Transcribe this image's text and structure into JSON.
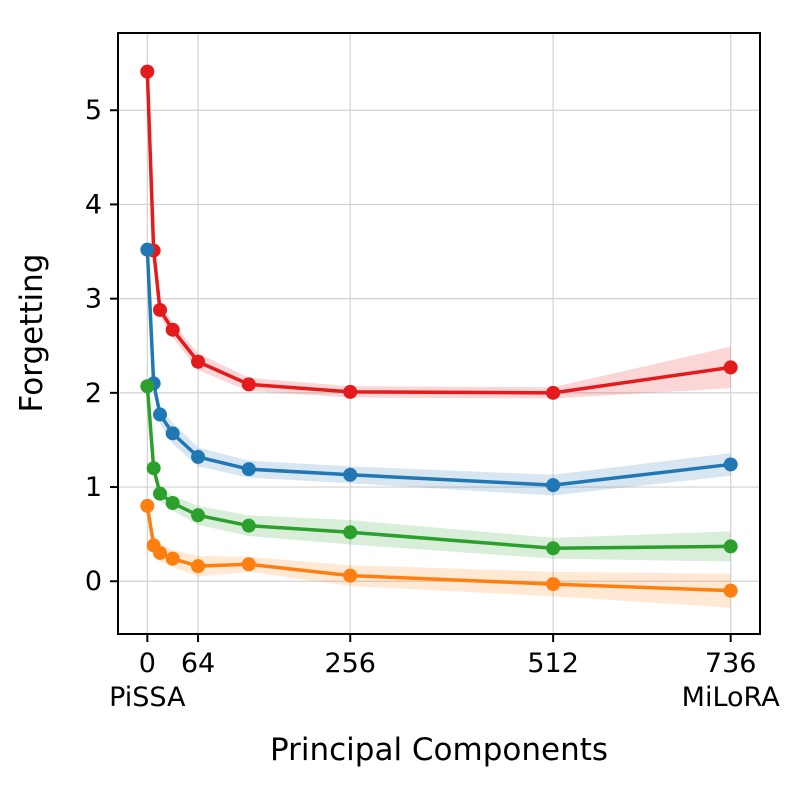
{
  "chart_data": {
    "type": "line",
    "title": "",
    "xlabel": "Principal Components",
    "ylabel": "Forgetting",
    "xlim": [
      -37,
      773
    ],
    "ylim": [
      -0.56,
      5.82
    ],
    "grid": true,
    "legend": "none",
    "x": [
      0,
      8,
      16,
      32,
      64,
      128,
      256,
      512,
      736
    ],
    "xticks": {
      "values": [
        0,
        64,
        256,
        512,
        736
      ],
      "labels": [
        "0",
        "64",
        "256",
        "512",
        "736"
      ]
    },
    "xtick_sublabels": [
      {
        "value": 0,
        "label": "PiSSA"
      },
      {
        "value": 736,
        "label": "MiLoRA"
      }
    ],
    "yticks": {
      "values": [
        0,
        1,
        2,
        3,
        4,
        5
      ],
      "labels": [
        "0",
        "1",
        "2",
        "3",
        "4",
        "5"
      ]
    },
    "series": [
      {
        "name": "red-series",
        "color": "#e41a1c",
        "values": [
          5.41,
          3.51,
          2.88,
          2.67,
          2.33,
          2.09,
          2.01,
          2.0,
          2.27
        ],
        "band": [
          0.05,
          0.07,
          0.07,
          0.08,
          0.09,
          0.07,
          0.06,
          0.06,
          0.22
        ]
      },
      {
        "name": "blue-series",
        "color": "#1f77b4",
        "values": [
          3.52,
          2.1,
          1.77,
          1.57,
          1.32,
          1.19,
          1.13,
          1.02,
          1.24
        ],
        "band": [
          0.06,
          0.09,
          0.1,
          0.11,
          0.1,
          0.09,
          0.09,
          0.11,
          0.12
        ]
      },
      {
        "name": "green-series",
        "color": "#2ca02c",
        "values": [
          2.07,
          1.2,
          0.93,
          0.83,
          0.7,
          0.59,
          0.52,
          0.35,
          0.37
        ],
        "band": [
          0.05,
          0.07,
          0.08,
          0.08,
          0.1,
          0.11,
          0.13,
          0.11,
          0.16
        ]
      },
      {
        "name": "orange-series",
        "color": "#ff7f0e",
        "values": [
          0.8,
          0.38,
          0.3,
          0.24,
          0.16,
          0.18,
          0.06,
          -0.03,
          -0.1
        ],
        "band": [
          0.05,
          0.1,
          0.09,
          0.09,
          0.11,
          0.08,
          0.11,
          0.13,
          0.18
        ]
      }
    ],
    "style": {
      "grid_color": "#d2d2d2",
      "spine_color": "#000000",
      "band_opacity": 0.18,
      "line_width": 3.5,
      "marker_radius": 7
    }
  }
}
